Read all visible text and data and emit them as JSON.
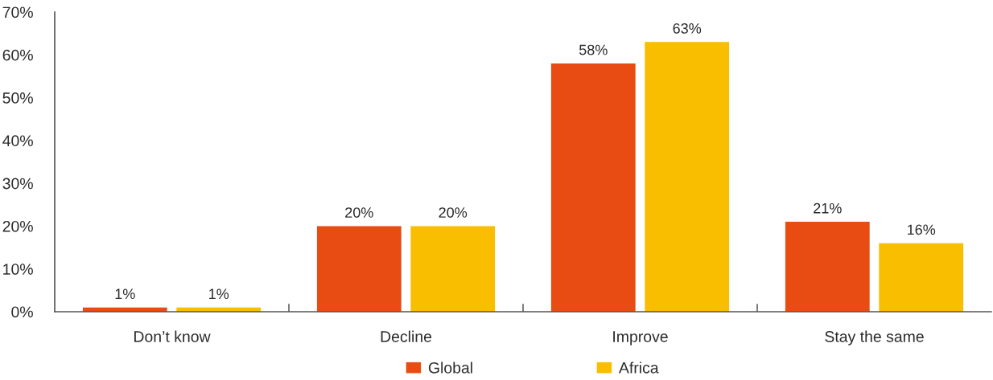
{
  "chart_data": {
    "type": "bar",
    "categories": [
      "Don’t know",
      "Decline",
      "Improve",
      "Stay the same"
    ],
    "series": [
      {
        "name": "Global",
        "color": "#e84c12",
        "values": [
          1,
          20,
          58,
          21
        ],
        "value_labels": [
          "1%",
          "20%",
          "58%",
          "21%"
        ]
      },
      {
        "name": "Africa",
        "color": "#f9be00",
        "values": [
          1,
          20,
          63,
          16
        ],
        "value_labels": [
          "1%",
          "20%",
          "63%",
          "16%"
        ]
      }
    ],
    "ylim": [
      0,
      70
    ],
    "yticks": [
      {
        "value": 0,
        "label": "0%"
      },
      {
        "value": 10,
        "label": "10%"
      },
      {
        "value": 20,
        "label": "20%"
      },
      {
        "value": 30,
        "label": "30%"
      },
      {
        "value": 40,
        "label": "40%"
      },
      {
        "value": 50,
        "label": "50%"
      },
      {
        "value": 60,
        "label": "60%"
      },
      {
        "value": 70,
        "label": "70%"
      }
    ],
    "legend": "bottom"
  }
}
